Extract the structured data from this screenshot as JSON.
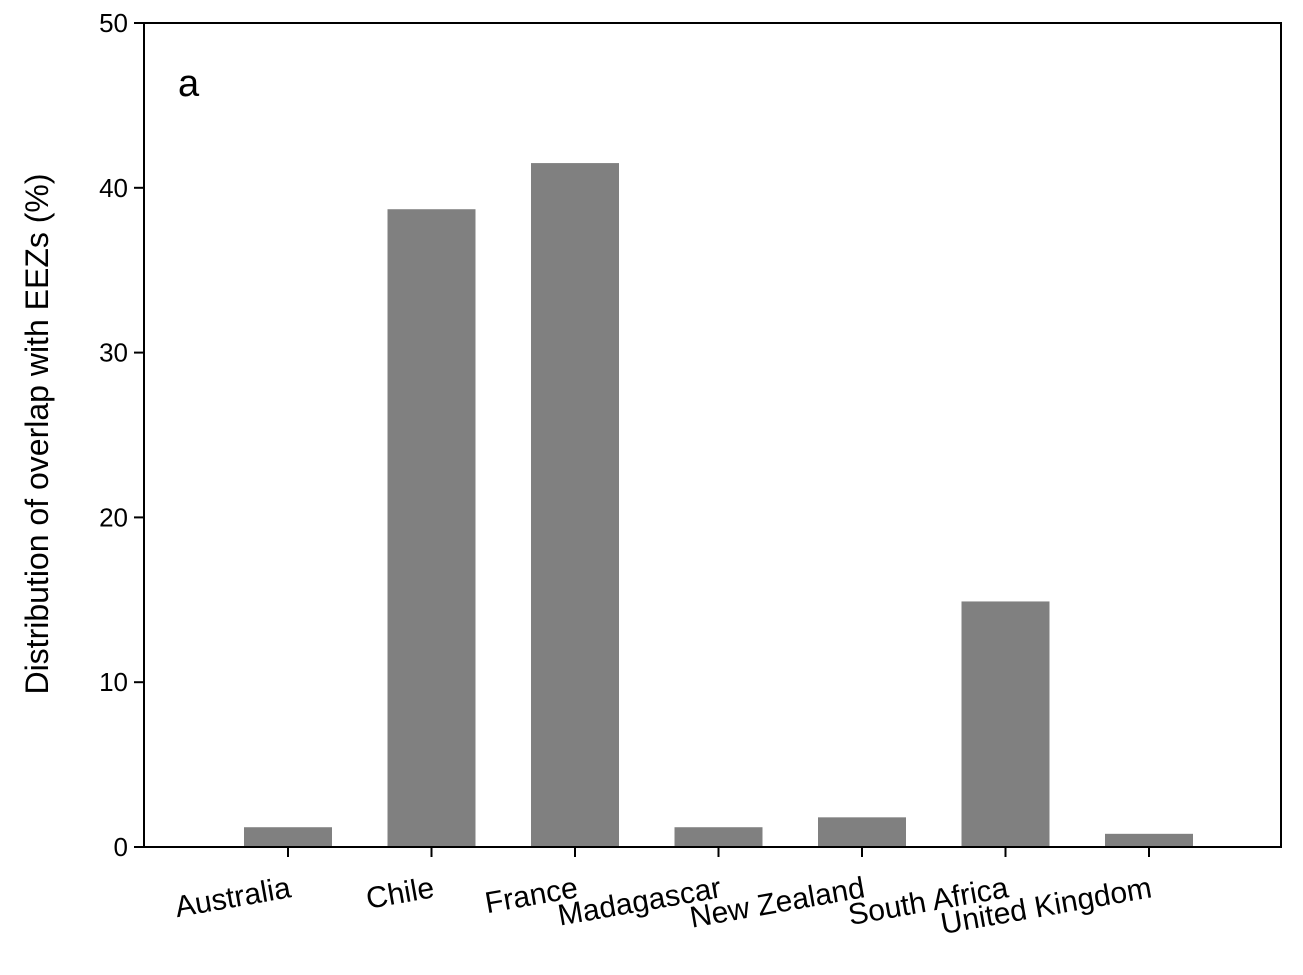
{
  "chart_data": {
    "type": "bar",
    "panel_label": "a",
    "ylabel": "Distribution of overlap with EEZs (%)",
    "xlabel": "",
    "ylim": [
      0,
      50
    ],
    "yticks": [
      "0",
      "10",
      "20",
      "30",
      "40",
      "50"
    ],
    "categories": [
      "Australia",
      "Chile",
      "France",
      "Madagascar",
      "New Zealand",
      "South Africa",
      "United Kingdom"
    ],
    "values": [
      1.2,
      38.7,
      41.5,
      1.2,
      1.8,
      14.9,
      0.8
    ],
    "bar_color": "#808080",
    "grid": false,
    "legend": "none"
  }
}
